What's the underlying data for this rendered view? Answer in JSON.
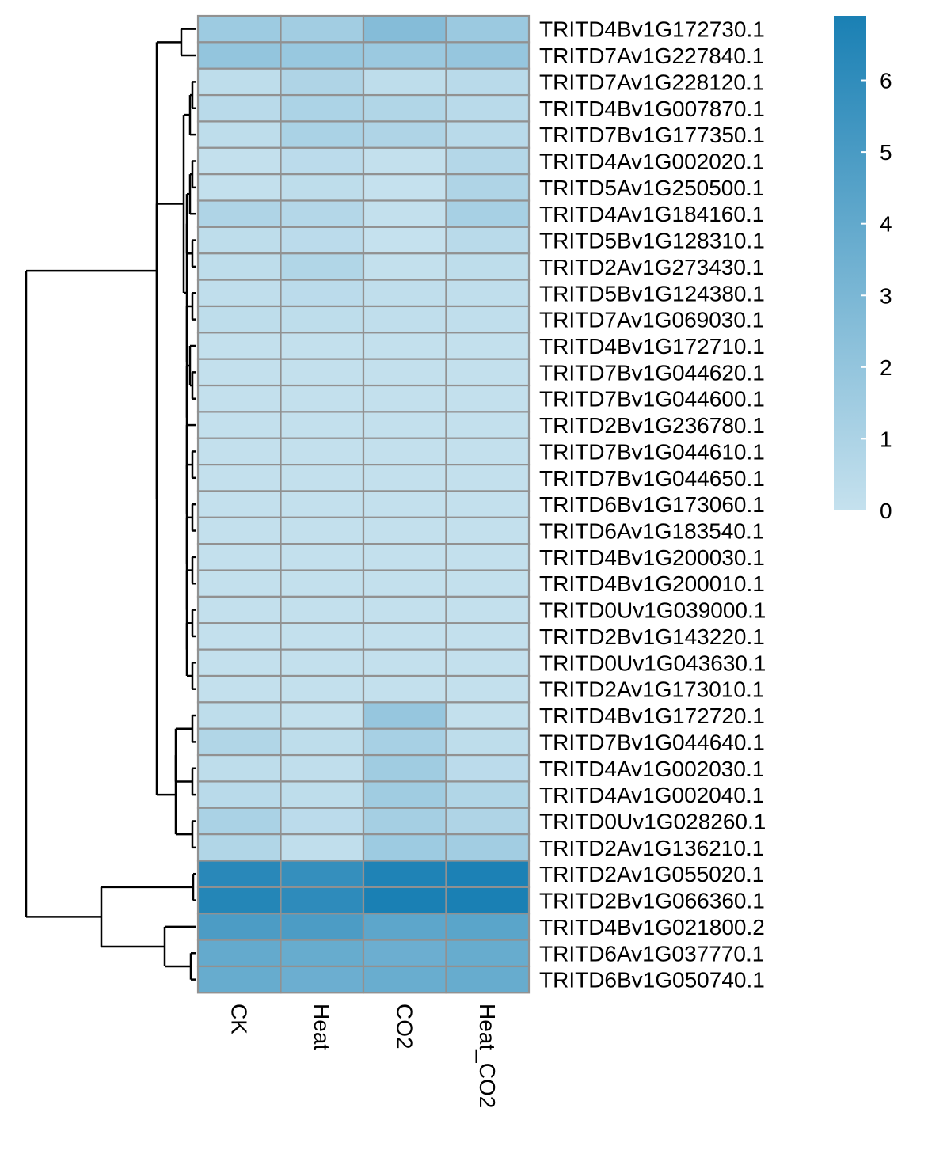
{
  "chart_data": {
    "type": "heatmap",
    "columns": [
      "CK",
      "Heat",
      "CO2",
      "Heat_CO2"
    ],
    "rows": [
      "TRITD4Bv1G172730.1",
      "TRITD7Av1G227840.1",
      "TRITD7Av1G228120.1",
      "TRITD4Bv1G007870.1",
      "TRITD7Bv1G177350.1",
      "TRITD4Av1G002020.1",
      "TRITD5Av1G250500.1",
      "TRITD4Av1G184160.1",
      "TRITD5Bv1G128310.1",
      "TRITD2Av1G273430.1",
      "TRITD5Bv1G124380.1",
      "TRITD7Av1G069030.1",
      "TRITD4Bv1G172710.1",
      "TRITD7Bv1G044620.1",
      "TRITD7Bv1G044600.1",
      "TRITD2Bv1G236780.1",
      "TRITD7Bv1G044610.1",
      "TRITD7Bv1G044650.1",
      "TRITD6Bv1G173060.1",
      "TRITD6Av1G183540.1",
      "TRITD4Bv1G200030.1",
      "TRITD4Bv1G200010.1",
      "TRITD0Uv1G039000.1",
      "TRITD2Bv1G143220.1",
      "TRITD0Uv1G043630.1",
      "TRITD2Av1G173010.1",
      "TRITD4Bv1G172720.1",
      "TRITD7Bv1G044640.1",
      "TRITD4Av1G002030.1",
      "TRITD4Av1G002040.1",
      "TRITD0Uv1G028260.1",
      "TRITD2Av1G136210.1",
      "TRITD2Av1G055020.1",
      "TRITD2Bv1G066360.1",
      "TRITD4Bv1G021800.2",
      "TRITD6Av1G037770.1",
      "TRITD6Bv1G050740.1"
    ],
    "values": [
      [
        1.6,
        1.4,
        2.6,
        1.7
      ],
      [
        2.0,
        1.8,
        1.7,
        1.9
      ],
      [
        0.3,
        0.9,
        0.3,
        0.5
      ],
      [
        0.5,
        1.0,
        0.8,
        0.5
      ],
      [
        0.3,
        1.1,
        0.9,
        0.5
      ],
      [
        0.1,
        0.4,
        0.1,
        0.7
      ],
      [
        0.1,
        0.3,
        0.0,
        0.9
      ],
      [
        0.9,
        0.7,
        0.1,
        1.2
      ],
      [
        0.3,
        0.4,
        0.0,
        0.5
      ],
      [
        0.3,
        0.8,
        0.1,
        0.3
      ],
      [
        0.2,
        0.4,
        0.2,
        0.2
      ],
      [
        0.3,
        0.3,
        0.2,
        0.2
      ],
      [
        0.1,
        0.1,
        0.1,
        0.1
      ],
      [
        0.1,
        0.1,
        0.1,
        0.1
      ],
      [
        0.1,
        0.1,
        0.1,
        0.1
      ],
      [
        0.1,
        0.1,
        0.1,
        0.1
      ],
      [
        0.1,
        0.1,
        0.1,
        0.1
      ],
      [
        0.1,
        0.1,
        0.1,
        0.1
      ],
      [
        0.1,
        0.1,
        0.1,
        0.1
      ],
      [
        0.1,
        0.1,
        0.1,
        0.1
      ],
      [
        0.1,
        0.1,
        0.1,
        0.1
      ],
      [
        0.1,
        0.1,
        0.1,
        0.1
      ],
      [
        0.1,
        0.1,
        0.1,
        0.1
      ],
      [
        0.1,
        0.1,
        0.1,
        0.1
      ],
      [
        0.1,
        0.1,
        0.1,
        0.1
      ],
      [
        0.1,
        0.1,
        0.1,
        0.1
      ],
      [
        0.3,
        0.1,
        1.9,
        0.1
      ],
      [
        0.8,
        0.3,
        1.2,
        0.3
      ],
      [
        0.3,
        0.2,
        1.5,
        0.4
      ],
      [
        0.5,
        0.3,
        1.5,
        0.8
      ],
      [
        1.1,
        0.4,
        1.3,
        0.9
      ],
      [
        0.8,
        0.2,
        1.6,
        1.4
      ],
      [
        6.3,
        5.8,
        6.7,
        6.8
      ],
      [
        6.5,
        6.1,
        6.9,
        6.9
      ],
      [
        4.9,
        4.9,
        4.2,
        4.3
      ],
      [
        3.9,
        3.8,
        3.6,
        3.8
      ],
      [
        3.8,
        3.6,
        3.7,
        3.8
      ]
    ],
    "legend": {
      "ticks": [
        0,
        1,
        2,
        3,
        4,
        5,
        6
      ],
      "min": 0,
      "max": 6.9,
      "low_color": "#c5e1ee",
      "high_color": "#1a80b4"
    },
    "cell_border_color": "#919191",
    "dendrogram": "rows",
    "legend_placement": "right"
  }
}
